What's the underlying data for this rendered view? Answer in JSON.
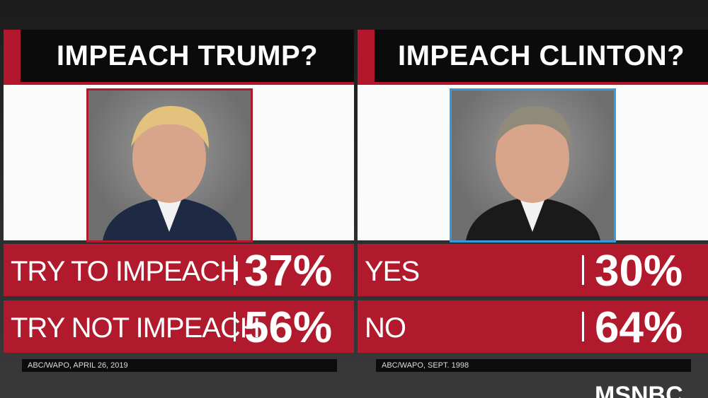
{
  "panels": [
    {
      "title": "IMPEACH TRUMP?",
      "rows": [
        {
          "label": "TRY TO IMPEACH",
          "value": "37%"
        },
        {
          "label": "TRY NOT IMPEACH",
          "value": "56%"
        }
      ],
      "source": "ABC/WAPO, APRIL 26, 2019"
    },
    {
      "title": "IMPEACH CLINTON?",
      "rows": [
        {
          "label": "YES",
          "value": "30%"
        },
        {
          "label": "NO",
          "value": "64%"
        }
      ],
      "source": "ABC/WAPO, SEPT. 1998"
    }
  ],
  "logo": "MSNBC"
}
